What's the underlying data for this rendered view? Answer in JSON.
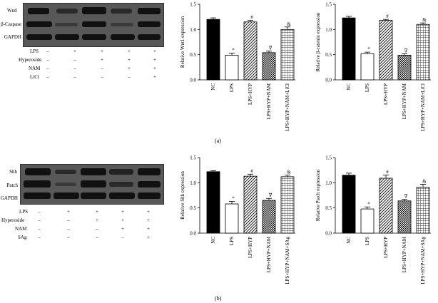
{
  "panels": [
    {
      "caption": "(a)",
      "blot_labels": [
        "Wntl",
        "β-Caspase",
        "GAPDH"
      ],
      "conditions": [
        {
          "name": "LPS",
          "signs": [
            "–",
            "+",
            "+",
            "+",
            "+"
          ]
        },
        {
          "name": "Hyperoside",
          "signs": [
            "–",
            "–",
            "+",
            "+",
            "+"
          ]
        },
        {
          "name": "NAM",
          "signs": [
            "–",
            "–",
            "–",
            "+",
            "+"
          ]
        },
        {
          "name": "LiCl",
          "signs": [
            "–",
            "–",
            "–",
            "–",
            "+"
          ]
        }
      ]
    },
    {
      "caption": "(b)",
      "blot_labels": [
        "Shh",
        "Patch",
        "GAPDH"
      ],
      "conditions": [
        {
          "name": "LPS",
          "signs": [
            "–",
            "+",
            "+",
            "+",
            "+"
          ]
        },
        {
          "name": "Hyperoside",
          "signs": [
            "–",
            "–",
            "+",
            "+",
            "+"
          ]
        },
        {
          "name": "NAM",
          "signs": [
            "–",
            "–",
            "–",
            "+",
            "+"
          ]
        },
        {
          "name": "SAg",
          "signs": [
            "–",
            "–",
            "–",
            "–",
            "+"
          ]
        }
      ]
    }
  ],
  "chart_data": [
    {
      "type": "bar",
      "ylabel": "Relative Wnt1 expression",
      "categories": [
        "NC",
        "LPS",
        "LPS+HYP",
        "LPS+HYP+NAM",
        "LPS+HYP+NAM+LiCl"
      ],
      "values": [
        1.2,
        0.49,
        1.15,
        0.54,
        1.0
      ],
      "errors": [
        0.03,
        0.04,
        0.03,
        0.03,
        0.05
      ],
      "markers": [
        "",
        "*",
        "#",
        "∇",
        "&"
      ],
      "ylim": [
        0,
        1.5
      ],
      "yticks": [
        "0.0",
        "0.5",
        "1.0",
        "1.5"
      ]
    },
    {
      "type": "bar",
      "ylabel": "Relative β-catenin expression",
      "categories": [
        "NC",
        "LPS",
        "LPS+HYP",
        "LPS+HYP+NAM",
        "LPS+HYP+NAM+LiCl"
      ],
      "values": [
        1.23,
        0.52,
        1.18,
        0.49,
        1.1
      ],
      "errors": [
        0.03,
        0.03,
        0.02,
        0.03,
        0.03
      ],
      "markers": [
        "",
        "*",
        "#",
        "∇",
        "&"
      ],
      "ylim": [
        0,
        1.5
      ],
      "yticks": [
        "0.0",
        "0.5",
        "1.0",
        "1.5"
      ]
    },
    {
      "type": "bar",
      "ylabel": "Relative Shh expression",
      "categories": [
        "NC",
        "LPS",
        "LPS+HYP",
        "LPS+HYP+NAM",
        "LPS+HYP+NAM+SAg"
      ],
      "values": [
        1.22,
        0.58,
        1.13,
        0.65,
        1.12
      ],
      "errors": [
        0.02,
        0.05,
        0.04,
        0.04,
        0.03
      ],
      "markers": [
        "",
        "*",
        "#",
        "∇",
        "&"
      ],
      "ylim": [
        0,
        1.5
      ],
      "yticks": [
        "0.0",
        "0.5",
        "1.0",
        "1.5"
      ]
    },
    {
      "type": "bar",
      "ylabel": "Relative Patch expression",
      "categories": [
        "NC",
        "LPS",
        "LPS+HYP",
        "LPS+HYP+NAM",
        "LPS+HYP+NAM+SAg"
      ],
      "values": [
        1.15,
        0.48,
        1.09,
        0.64,
        0.91
      ],
      "errors": [
        0.04,
        0.04,
        0.06,
        0.03,
        0.06
      ],
      "markers": [
        "",
        "*",
        "#",
        "∇",
        "&"
      ],
      "ylim": [
        0,
        1.5
      ],
      "yticks": [
        "0.0",
        "0.5",
        "1.0",
        "1.5"
      ]
    }
  ]
}
